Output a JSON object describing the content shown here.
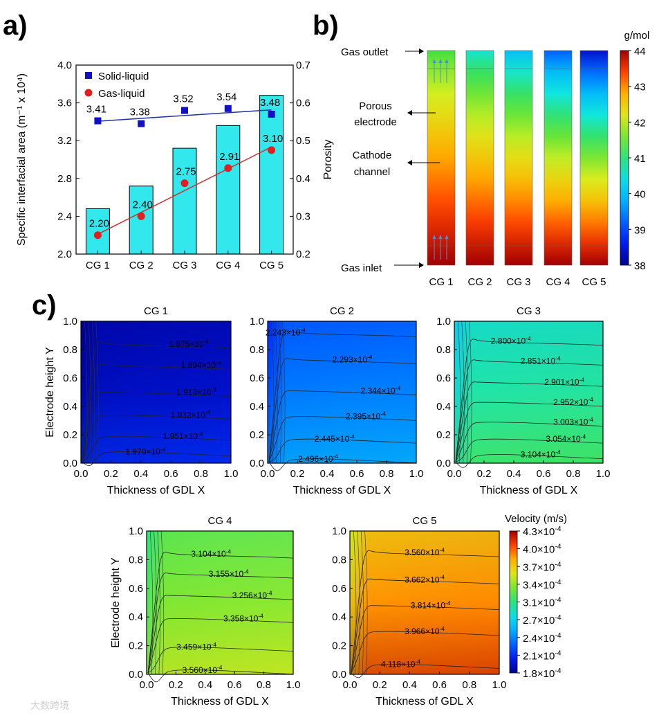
{
  "panel_labels": {
    "a": "a)",
    "b": "b)",
    "c": "c)"
  },
  "watermark": "大数跨境",
  "colors": {
    "bar_fill": "#33e8ec",
    "solid_liquid": "#1010c8",
    "gas_liquid": "#e02020",
    "solid_line": "#2030a0",
    "gas_line": "#c83030"
  },
  "chart_data": [
    {
      "type": "bar",
      "id": "a",
      "categories": [
        "CG 1",
        "CG 2",
        "CG 3",
        "CG 4",
        "CG 5"
      ],
      "ylabel": "Specific interfacial area (m⁻¹ x 10⁴)",
      "y2label": "Porosity",
      "ylim": [
        2.0,
        4.0
      ],
      "y2lim": [
        0.2,
        0.7
      ],
      "yticks": [
        "2.0",
        "2.4",
        "2.8",
        "3.2",
        "3.6",
        "4.0"
      ],
      "y2ticks": [
        "0.2",
        "0.3",
        "0.4",
        "0.5",
        "0.6",
        "0.7"
      ],
      "bars_porosity": [
        0.32,
        0.38,
        0.48,
        0.54,
        0.62
      ],
      "series": [
        {
          "name": "Solid-liquid",
          "marker": "square",
          "values": [
            3.41,
            3.38,
            3.52,
            3.54,
            3.48
          ],
          "labels": [
            "3.41",
            "3.38",
            "3.52",
            "3.54",
            "3.48"
          ]
        },
        {
          "name": "Gas-liquid",
          "marker": "circle",
          "values": [
            2.2,
            2.4,
            2.75,
            2.91,
            3.1
          ],
          "labels": [
            "2.20",
            "2.40",
            "2.75",
            "2.91",
            "3.10"
          ]
        }
      ],
      "legend": "top-left"
    },
    {
      "type": "heatmap",
      "id": "b",
      "categories": [
        "CG 1",
        "CG 2",
        "CG 3",
        "CG 4",
        "CG 5"
      ],
      "annotations": [
        "Gas outlet",
        "Porous electrode",
        "Cathode channel",
        "Gas inlet"
      ],
      "colorbar": {
        "unit": "g/mol",
        "min": 38,
        "max": 44,
        "ticks": [
          "44",
          "43",
          "42",
          "41",
          "40",
          "39",
          "38"
        ]
      },
      "outlet_values": [
        41.3,
        40.6,
        40.0,
        39.2,
        38.4
      ],
      "inlet_value": 44
    },
    {
      "type": "heatmap",
      "id": "c",
      "xlabel": "Thickness of GDL  X",
      "ylabel": "Electrode height  Y",
      "xticks": [
        "0.0",
        "0.2",
        "0.4",
        "0.6",
        "0.8",
        "1.0"
      ],
      "yticks": [
        "0.0",
        "0.2",
        "0.4",
        "0.6",
        "0.8",
        "1.0"
      ],
      "colorbar": {
        "title": "Velocity (m/s)",
        "min": 1.8,
        "max": 4.3,
        "exp": "-4",
        "ticks": [
          "4.3",
          "4.0",
          "3.7",
          "3.4",
          "3.1",
          "2.7",
          "2.4",
          "2.1",
          "1.8"
        ]
      },
      "plots": [
        {
          "title": "CG 1",
          "mean": 1.92,
          "contours": [
            {
              "label": "1.875",
              "y": 0.84,
              "x": 0.72
            },
            {
              "label": "1.894",
              "y": 0.69,
              "x": 0.8
            },
            {
              "label": "1.913",
              "y": 0.5,
              "x": 0.77
            },
            {
              "label": "1.932",
              "y": 0.34,
              "x": 0.73
            },
            {
              "label": "1.951",
              "y": 0.19,
              "x": 0.68
            },
            {
              "label": "1.970",
              "y": 0.08,
              "x": 0.43
            }
          ]
        },
        {
          "title": "CG 2",
          "mean": 2.37,
          "contours": [
            {
              "label": "2.243",
              "y": 0.92,
              "x": 0.12
            },
            {
              "label": "2.293",
              "y": 0.73,
              "x": 0.57
            },
            {
              "label": "2.344",
              "y": 0.51,
              "x": 0.76
            },
            {
              "label": "2.395",
              "y": 0.33,
              "x": 0.66
            },
            {
              "label": "2.445",
              "y": 0.17,
              "x": 0.45
            },
            {
              "label": "2.496",
              "y": 0.03,
              "x": 0.34
            }
          ]
        },
        {
          "title": "CG 3",
          "mean": 2.95,
          "contours": [
            {
              "label": "2.800",
              "y": 0.86,
              "x": 0.38
            },
            {
              "label": "2.851",
              "y": 0.72,
              "x": 0.58
            },
            {
              "label": "2.901",
              "y": 0.57,
              "x": 0.74
            },
            {
              "label": "2.952",
              "y": 0.43,
              "x": 0.8
            },
            {
              "label": "3.003",
              "y": 0.29,
              "x": 0.8
            },
            {
              "label": "3.054",
              "y": 0.17,
              "x": 0.75
            },
            {
              "label": "3.104",
              "y": 0.06,
              "x": 0.58
            }
          ]
        },
        {
          "title": "CG 4",
          "mean": 3.3,
          "contours": [
            {
              "label": "3.104",
              "y": 0.84,
              "x": 0.44
            },
            {
              "label": "3.155",
              "y": 0.7,
              "x": 0.56
            },
            {
              "label": "3.256",
              "y": 0.55,
              "x": 0.72
            },
            {
              "label": "3.358",
              "y": 0.39,
              "x": 0.66
            },
            {
              "label": "3.459",
              "y": 0.19,
              "x": 0.34
            },
            {
              "label": "3.560",
              "y": 0.03,
              "x": 0.38
            }
          ]
        },
        {
          "title": "CG 5",
          "mean": 3.85,
          "contours": [
            {
              "label": "3.560",
              "y": 0.85,
              "x": 0.5
            },
            {
              "label": "3.662",
              "y": 0.66,
              "x": 0.5
            },
            {
              "label": "3.814",
              "y": 0.48,
              "x": 0.54
            },
            {
              "label": "3.966",
              "y": 0.3,
              "x": 0.5
            },
            {
              "label": "4.118",
              "y": 0.07,
              "x": 0.34
            }
          ]
        }
      ]
    }
  ]
}
